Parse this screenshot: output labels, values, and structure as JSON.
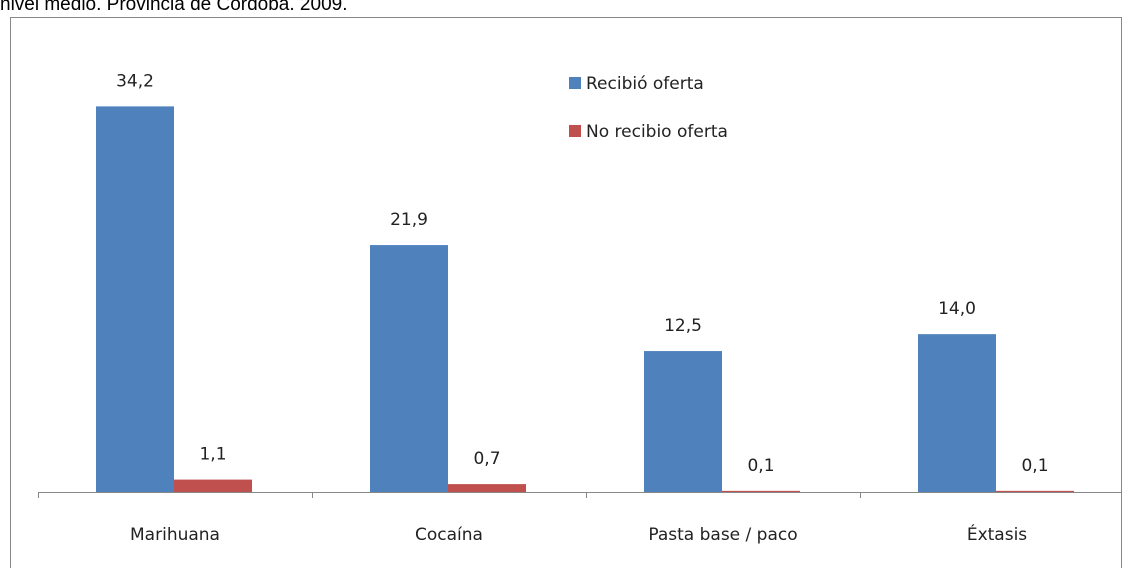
{
  "chart_data": {
    "type": "bar",
    "title": "nivel medio. Provincia de Córdoba. 2009.",
    "categories": [
      "Marihuana",
      "Cocaína",
      "Pasta base / paco",
      "Éxtasis"
    ],
    "series": [
      {
        "name": "Recibió oferta",
        "color": "#4f81bd",
        "values": [
          34.2,
          21.9,
          12.5,
          14.0
        ],
        "value_labels": [
          "34,2",
          "21,9",
          "12,5",
          "14,0"
        ]
      },
      {
        "name": "No recibio oferta",
        "color": "#c0504d",
        "values": [
          1.1,
          0.7,
          0.1,
          0.1
        ],
        "value_labels": [
          "1,1",
          "0,7",
          "0,1",
          "0,1"
        ]
      }
    ],
    "ylim": [
      0,
      40
    ],
    "legend": "top"
  }
}
